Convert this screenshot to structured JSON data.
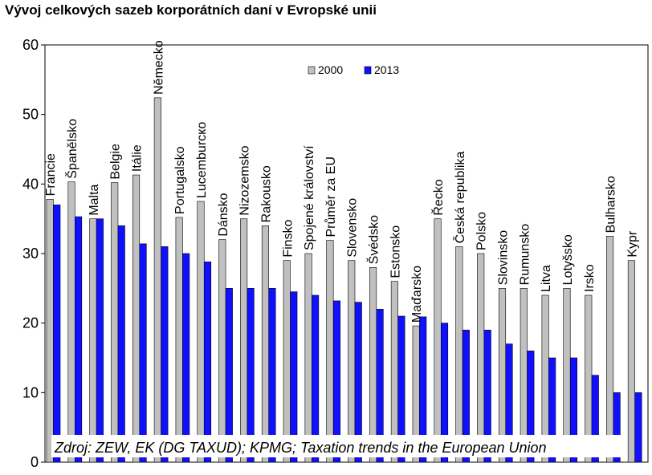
{
  "chart_data": {
    "type": "bar",
    "title": "Vývoj celkových sazeb korporátních daní v Evropské unii",
    "categories": [
      "Francie",
      "Španělsko",
      "Malta",
      "Belgie",
      "Itálie",
      "Německo",
      "Portugalsko",
      "Lucemburско",
      "Dánsko",
      "Nizozemsko",
      "Rakousko",
      "Finsko",
      "Spojené království",
      "Průměr za EU",
      "Slovensko",
      "Švédsko",
      "Estonsko",
      "Maďarsko",
      "Řecko",
      "Česká republika",
      "Polsko",
      "Slovinsko",
      "Rumunsko",
      "Litva",
      "Lotyšsko",
      "Irsko",
      "Bulharsko",
      "Kypr"
    ],
    "series": [
      {
        "name": "2000",
        "color": "#c0c0c0",
        "values": [
          37.8,
          40.3,
          35,
          40.2,
          41.3,
          52.4,
          35.2,
          37.5,
          32,
          35,
          34,
          29,
          30,
          31.9,
          29,
          28,
          26,
          19.6,
          35,
          31,
          30,
          25,
          25,
          24,
          25,
          24,
          32.5,
          29
        ]
      },
      {
        "name": "2013",
        "color": "#1010ff",
        "values": [
          37,
          35.3,
          35,
          34,
          31.4,
          31,
          30,
          28.8,
          25,
          25,
          25,
          24.5,
          24,
          23.2,
          23,
          22,
          21,
          20.9,
          20,
          19,
          19,
          17,
          16,
          15,
          15,
          12.5,
          10,
          10
        ]
      }
    ],
    "yticks": [
      "0",
      "10",
      "20",
      "30",
      "40",
      "50",
      "60"
    ],
    "ylim": [
      0,
      60
    ],
    "xlabel": "",
    "ylabel": "",
    "grid": false,
    "legend": "top-center",
    "source_note": "Zdroj: ZEW, EK (DG TAXUD); KPMG; Taxation trends in the European Union"
  }
}
